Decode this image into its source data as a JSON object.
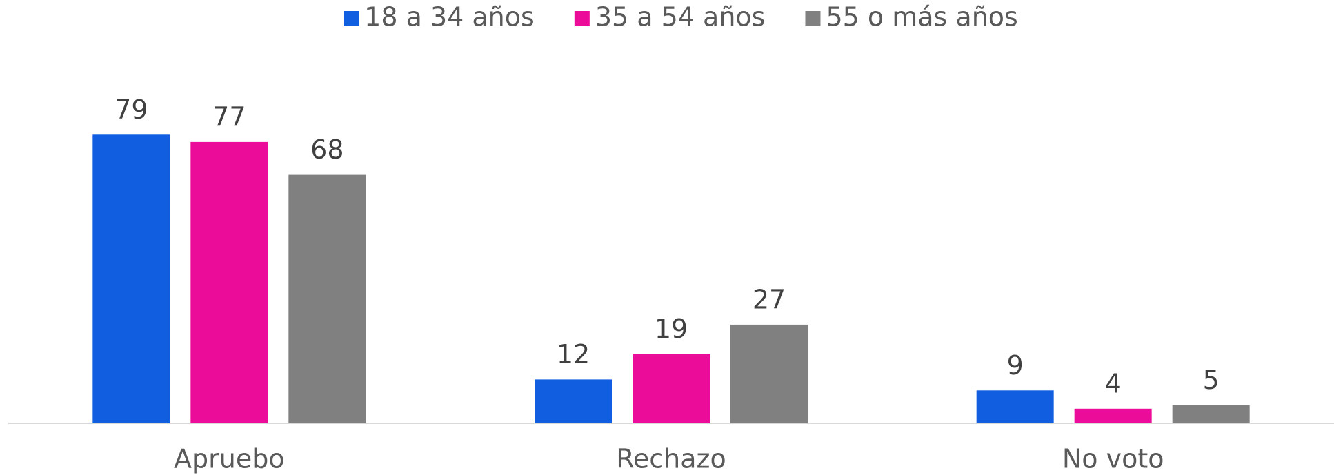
{
  "chart_data": {
    "type": "bar",
    "categories": [
      "Apruebo",
      "Rechazo",
      "No voto"
    ],
    "series": [
      {
        "name": "18 a 34 años",
        "color": "#115ee0",
        "values": [
          79,
          12,
          9
        ]
      },
      {
        "name": "35 a 54 años",
        "color": "#ec0c9a",
        "values": [
          77,
          19,
          4
        ]
      },
      {
        "name": "55 o más años",
        "color": "#808080",
        "values": [
          68,
          27,
          5
        ]
      }
    ],
    "ylim": [
      0,
      100
    ],
    "legend": "top"
  }
}
